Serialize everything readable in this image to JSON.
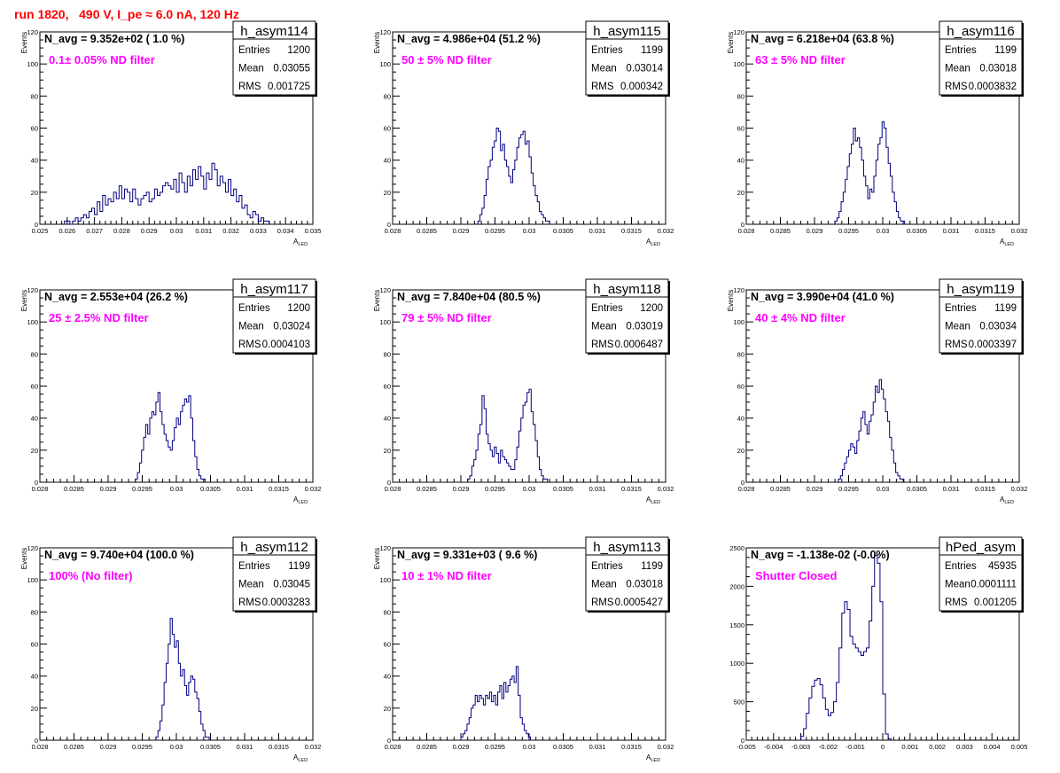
{
  "page": {
    "run_title": "run 1820,   490 V, I_pe ≈ 6.0 nA, 120 Hz"
  },
  "style": {
    "axis_color": "#000000",
    "hist_color": "#000080",
    "annotation_color": "#ff00ff",
    "title_color": "#ff0000"
  },
  "stats_labels": {
    "entries": "Entries",
    "mean": "Mean",
    "rms": "RMS"
  },
  "chart_data": [
    {
      "type": "histogram",
      "name": "h_asym114",
      "nsummary": "N_avg = 9.352e+02 ( 1.0 %)",
      "annotation": "0.1± 0.05% ND filter",
      "stats": {
        "entries": "1200",
        "mean": "0.03055",
        "rms": "0.001725"
      },
      "ylabel": "Events",
      "xlabel": "A",
      "xlabel_sub": "LED",
      "xlim": [
        0.025,
        0.035
      ],
      "ylim": [
        0,
        120
      ],
      "xticks": [
        "0.025",
        "0.026",
        "0.027",
        "0.028",
        "0.029",
        "0.03",
        "0.031",
        "0.032",
        "0.033",
        "0.034",
        "0.035"
      ],
      "yticks": [
        "0",
        "20",
        "40",
        "60",
        "80",
        "100",
        "120"
      ],
      "bin_start": 0.0259,
      "bin_width": 0.0001,
      "values": [
        2,
        2,
        0,
        2,
        4,
        2,
        4,
        6,
        4,
        8,
        10,
        6,
        14,
        8,
        18,
        12,
        16,
        14,
        20,
        16,
        24,
        16,
        22,
        20,
        14,
        22,
        16,
        12,
        16,
        18,
        20,
        14,
        16,
        22,
        18,
        20,
        24,
        26,
        24,
        22,
        28,
        20,
        32,
        26,
        20,
        30,
        24,
        34,
        28,
        36,
        30,
        22,
        32,
        28,
        38,
        34,
        24,
        30,
        26,
        20,
        28,
        18,
        22,
        14,
        18,
        10,
        12,
        6,
        4,
        8,
        6,
        2,
        4,
        2,
        2
      ]
    },
    {
      "type": "histogram",
      "name": "h_asym115",
      "nsummary": "N_avg = 4.986e+04 (51.2 %)",
      "annotation": "50 ± 5% ND filter",
      "stats": {
        "entries": "1199",
        "mean": "0.03014",
        "rms": "0.000342"
      },
      "ylabel": "Events",
      "xlabel": "A",
      "xlabel_sub": "LED",
      "xlim": [
        0.028,
        0.032
      ],
      "ylim": [
        0,
        120
      ],
      "xticks": [
        "0.028",
        "0.0285",
        "0.029",
        "0.0295",
        "0.03",
        "0.0305",
        "0.031",
        "0.0315",
        "0.032"
      ],
      "yticks": [
        "0",
        "20",
        "40",
        "60",
        "80",
        "100",
        "120"
      ],
      "bin_start": 0.02925,
      "bin_width": 3e-05,
      "values": [
        2,
        6,
        10,
        18,
        28,
        36,
        40,
        48,
        52,
        60,
        58,
        46,
        50,
        40,
        36,
        30,
        26,
        34,
        40,
        48,
        54,
        56,
        58,
        50,
        52,
        42,
        32,
        24,
        18,
        14,
        8,
        6,
        4,
        2,
        2
      ]
    },
    {
      "type": "histogram",
      "name": "h_asym116",
      "nsummary": "N_avg = 6.218e+04 (63.8 %)",
      "annotation": "63 ± 5% ND filter",
      "stats": {
        "entries": "1199",
        "mean": "0.03018",
        "rms": "0.0003832"
      },
      "ylabel": "Events",
      "xlabel": "A",
      "xlabel_sub": "LED",
      "xlim": [
        0.028,
        0.032
      ],
      "ylim": [
        0,
        120
      ],
      "xticks": [
        "0.028",
        "0.0285",
        "0.029",
        "0.0295",
        "0.03",
        "0.0305",
        "0.031",
        "0.0315",
        "0.032"
      ],
      "yticks": [
        "0",
        "20",
        "40",
        "60",
        "80",
        "100",
        "120"
      ],
      "bin_start": 0.0293,
      "bin_width": 3e-05,
      "values": [
        2,
        4,
        8,
        14,
        20,
        28,
        36,
        44,
        50,
        60,
        52,
        54,
        48,
        40,
        30,
        24,
        16,
        22,
        20,
        30,
        40,
        50,
        54,
        64,
        60,
        48,
        38,
        30,
        20,
        14,
        8,
        4,
        2,
        2
      ]
    },
    {
      "type": "histogram",
      "name": "h_asym117",
      "nsummary": "N_avg = 2.553e+04 (26.2 %)",
      "annotation": "25 ± 2.5% ND filter",
      "stats": {
        "entries": "1200",
        "mean": "0.03024",
        "rms": "0.0004103"
      },
      "ylabel": "Events",
      "xlabel": "A",
      "xlabel_sub": "LED",
      "xlim": [
        0.028,
        0.032
      ],
      "ylim": [
        0,
        120
      ],
      "xticks": [
        "0.028",
        "0.0285",
        "0.029",
        "0.0295",
        "0.03",
        "0.0305",
        "0.031",
        "0.0315",
        "0.032"
      ],
      "yticks": [
        "0",
        "20",
        "40",
        "60",
        "80",
        "100",
        "120"
      ],
      "bin_start": 0.0294,
      "bin_width": 3e-05,
      "values": [
        2,
        6,
        12,
        20,
        28,
        36,
        30,
        40,
        44,
        42,
        50,
        56,
        44,
        36,
        30,
        26,
        22,
        20,
        26,
        34,
        40,
        36,
        44,
        48,
        52,
        50,
        54,
        40,
        26,
        16,
        8,
        4,
        2,
        2
      ]
    },
    {
      "type": "histogram",
      "name": "h_asym118",
      "nsummary": "N_avg = 7.840e+04 (80.5 %)",
      "annotation": "79 ± 5% ND filter",
      "stats": {
        "entries": "1200",
        "mean": "0.03019",
        "rms": "0.0006487"
      },
      "ylabel": "Events",
      "xlabel": "A",
      "xlabel_sub": "LED",
      "xlim": [
        0.028,
        0.032
      ],
      "ylim": [
        0,
        120
      ],
      "xticks": [
        "0.028",
        "0.0285",
        "0.029",
        "0.0295",
        "0.03",
        "0.0305",
        "0.031",
        "0.0315",
        "0.032"
      ],
      "yticks": [
        "0",
        "20",
        "40",
        "60",
        "80",
        "100",
        "120"
      ],
      "bin_start": 0.0291,
      "bin_width": 3e-05,
      "values": [
        2,
        4,
        10,
        14,
        20,
        30,
        36,
        54,
        46,
        30,
        24,
        20,
        16,
        22,
        18,
        12,
        20,
        16,
        14,
        12,
        10,
        8,
        8,
        14,
        22,
        32,
        40,
        48,
        50,
        56,
        58,
        44,
        36,
        26,
        16,
        8,
        4,
        2,
        2
      ]
    },
    {
      "type": "histogram",
      "name": "h_asym119",
      "nsummary": "N_avg = 3.990e+04 (41.0 %)",
      "annotation": "40 ± 4% ND filter",
      "stats": {
        "entries": "1199",
        "mean": "0.03034",
        "rms": "0.0003397"
      },
      "ylabel": "Events",
      "xlabel": "A",
      "xlabel_sub": "LED",
      "xlim": [
        0.028,
        0.032
      ],
      "ylim": [
        0,
        120
      ],
      "xticks": [
        "0.028",
        "0.0285",
        "0.029",
        "0.0295",
        "0.03",
        "0.0305",
        "0.031",
        "0.0315",
        "0.032"
      ],
      "yticks": [
        "0",
        "20",
        "40",
        "60",
        "80",
        "100",
        "120"
      ],
      "bin_start": 0.02935,
      "bin_width": 3e-05,
      "values": [
        2,
        4,
        8,
        12,
        16,
        20,
        24,
        22,
        18,
        26,
        32,
        40,
        44,
        36,
        30,
        38,
        42,
        50,
        60,
        56,
        64,
        58,
        52,
        44,
        38,
        28,
        20,
        12,
        6,
        4,
        2,
        2
      ]
    },
    {
      "type": "histogram",
      "name": "h_asym112",
      "nsummary": "N_avg = 9.740e+04 (100.0 %)",
      "annotation": "100% (No filter)",
      "stats": {
        "entries": "1199",
        "mean": "0.03045",
        "rms": "0.0003283"
      },
      "ylabel": "Events",
      "xlabel": "A",
      "xlabel_sub": "LED",
      "xlim": [
        0.028,
        0.032
      ],
      "ylim": [
        0,
        120
      ],
      "xticks": [
        "0.028",
        "0.0285",
        "0.029",
        "0.0295",
        "0.03",
        "0.0305",
        "0.031",
        "0.0315",
        "0.032"
      ],
      "yticks": [
        "0",
        "20",
        "40",
        "60",
        "80",
        "100",
        "120"
      ],
      "bin_start": 0.0297,
      "bin_width": 3e-05,
      "values": [
        2,
        6,
        12,
        22,
        36,
        48,
        60,
        76,
        66,
        58,
        62,
        48,
        40,
        44,
        34,
        28,
        36,
        40,
        38,
        30,
        26,
        18,
        10,
        6,
        2,
        2
      ]
    },
    {
      "type": "histogram",
      "name": "h_asym113",
      "nsummary": "N_avg = 9.331e+03 ( 9.6 %)",
      "annotation": "10 ± 1% ND filter",
      "stats": {
        "entries": "1199",
        "mean": "0.03018",
        "rms": "0.0005427"
      },
      "ylabel": "Events",
      "xlabel": "A",
      "xlabel_sub": "LED",
      "xlim": [
        0.028,
        0.032
      ],
      "ylim": [
        0,
        120
      ],
      "xticks": [
        "0.028",
        "0.0285",
        "0.029",
        "0.0295",
        "0.03",
        "0.0305",
        "0.031",
        "0.0315",
        "0.032"
      ],
      "yticks": [
        "0",
        "20",
        "40",
        "60",
        "80",
        "100",
        "120"
      ],
      "bin_start": 0.029,
      "bin_width": 3e-05,
      "values": [
        2,
        4,
        6,
        10,
        14,
        20,
        22,
        28,
        24,
        28,
        26,
        22,
        28,
        26,
        30,
        24,
        28,
        22,
        30,
        34,
        26,
        36,
        30,
        34,
        38,
        40,
        36,
        46,
        28,
        14,
        10,
        6,
        4,
        2
      ]
    },
    {
      "type": "histogram",
      "name": "hPed_asym",
      "nsummary": "N_avg = -1.138e-02 (-0.0%)",
      "annotation": "Shutter Closed",
      "stats": {
        "entries": "45935",
        "mean": "0.0001111",
        "rms": "0.001205"
      },
      "ylabel": "",
      "xlabel": "",
      "xlabel_sub": "",
      "xlim": [
        -0.005,
        0.005
      ],
      "ylim": [
        0,
        2500
      ],
      "xticks": [
        "-0.005",
        "-0.004",
        "-0.003",
        "-0.002",
        "-0.001",
        "0",
        "0.001",
        "0.002",
        "0.003",
        "0.004",
        "0.005"
      ],
      "yticks": [
        "0",
        "500",
        "1000",
        "1500",
        "2000",
        "2500"
      ],
      "bin_start": -0.003,
      "bin_width": 0.0001,
      "values": [
        50,
        150,
        350,
        550,
        700,
        780,
        800,
        720,
        550,
        400,
        320,
        360,
        500,
        750,
        1200,
        1650,
        1800,
        1700,
        1350,
        1250,
        1200,
        1150,
        1100,
        1150,
        1200,
        1550,
        2000,
        2400,
        2300,
        1800,
        600,
        80,
        20
      ]
    }
  ]
}
